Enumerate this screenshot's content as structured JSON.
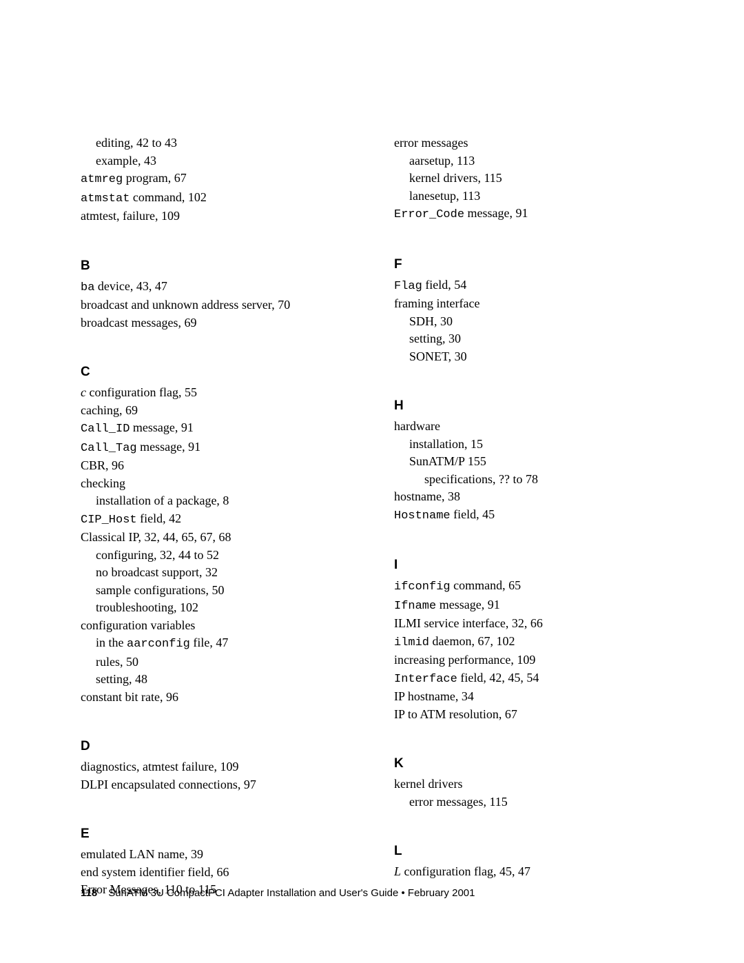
{
  "left": {
    "A_cont": [
      {
        "t": "editing,  42 to 43",
        "cls": "sub1"
      },
      {
        "t": "example,  43",
        "cls": "sub1"
      },
      {
        "pre": "atmreg",
        "post": " program,  67"
      },
      {
        "pre": "atmstat",
        "post": " command,  102"
      },
      {
        "t": "atmtest, failure,  109"
      }
    ],
    "B_head": "B",
    "B": [
      {
        "pre": "ba",
        "post": " device,  43, 47"
      },
      {
        "t": "broadcast and unknown address server,  70"
      },
      {
        "t": "broadcast messages,  69"
      }
    ],
    "C_head": "C",
    "C": [
      {
        "ital": "c",
        "post": " configuration flag,  55"
      },
      {
        "t": "caching,  69"
      },
      {
        "pre": "Call_ID",
        "post": " message,  91"
      },
      {
        "pre": "Call_Tag",
        "post": " message,  91"
      },
      {
        "t": "CBR,  96"
      },
      {
        "t": "checking"
      },
      {
        "t": "installation of a package,  8",
        "cls": "sub1"
      },
      {
        "pre": "CIP_Host",
        "post": " field,  42"
      },
      {
        "t": "Classical IP,  32, 44, 65, 67, 68"
      },
      {
        "t": "configuring,  32, 44 to 52",
        "cls": "sub1"
      },
      {
        "t": "no broadcast support,  32",
        "cls": "sub1"
      },
      {
        "t": "sample configurations,  50",
        "cls": "sub1"
      },
      {
        "t": "troubleshooting,  102",
        "cls": "sub1"
      },
      {
        "t": "configuration variables"
      },
      {
        "plain": "in the ",
        "pre": "aarconfig",
        "post": " file,  47",
        "cls": "sub1"
      },
      {
        "t": "rules,  50",
        "cls": "sub1"
      },
      {
        "t": "setting,  48",
        "cls": "sub1"
      },
      {
        "t": "constant bit rate,  96"
      }
    ],
    "D_head": "D",
    "D": [
      {
        "t": "diagnostics, atmtest failure,  109"
      },
      {
        "t": "DLPI encapsulated connections,  97"
      }
    ],
    "E_head": "E",
    "E": [
      {
        "t": "emulated LAN name,  39"
      },
      {
        "t": "end system identifier field,  66"
      },
      {
        "t": "Error Messages,  110 to 115"
      }
    ]
  },
  "right": {
    "E_cont": [
      {
        "t": "error messages"
      },
      {
        "t": "aarsetup,  113",
        "cls": "sub1"
      },
      {
        "t": "kernel drivers,  115",
        "cls": "sub1"
      },
      {
        "t": "lanesetup,  113",
        "cls": "sub1"
      },
      {
        "pre": "Error_Code",
        "post": " message,  91"
      }
    ],
    "F_head": "F",
    "F": [
      {
        "pre": "Flag",
        "post": " field,  54"
      },
      {
        "t": "framing interface"
      },
      {
        "t": "SDH,  30",
        "cls": "sub1"
      },
      {
        "t": "setting,  30",
        "cls": "sub1"
      },
      {
        "t": "SONET,  30",
        "cls": "sub1"
      }
    ],
    "H_head": "H",
    "H": [
      {
        "t": "hardware"
      },
      {
        "t": "installation,  15",
        "cls": "sub1"
      },
      {
        "t": "SunATM/P 155",
        "cls": "sub1"
      },
      {
        "t": "specifications,  ?? to 78",
        "cls": "sub2"
      },
      {
        "t": "hostname,  38"
      },
      {
        "pre": "Hostname",
        "post": " field,  45"
      }
    ],
    "I_head": "I",
    "I": [
      {
        "pre": "ifconfig",
        "post": " command,  65"
      },
      {
        "pre": "Ifname",
        "post": " message,  91"
      },
      {
        "t": "ILMI service interface,  32, 66"
      },
      {
        "pre": "ilmid",
        "post": " daemon,  67, 102"
      },
      {
        "t": "increasing performance,  109"
      },
      {
        "pre": "Interface",
        "post": " field,  42, 45, 54"
      },
      {
        "t": "IP hostname,  34"
      },
      {
        "t": "IP to ATM resolution,  67"
      }
    ],
    "K_head": "K",
    "K": [
      {
        "t": "kernel drivers"
      },
      {
        "t": "error messages,  115",
        "cls": "sub1"
      }
    ],
    "L_head": "L",
    "L": [
      {
        "ital": "L",
        "post": " configuration flag,  45, 47"
      }
    ]
  },
  "footer": {
    "page": "118",
    "title": "SunATM 3U CompactPCI Adapter Installation and User's Guide • February 2001"
  }
}
